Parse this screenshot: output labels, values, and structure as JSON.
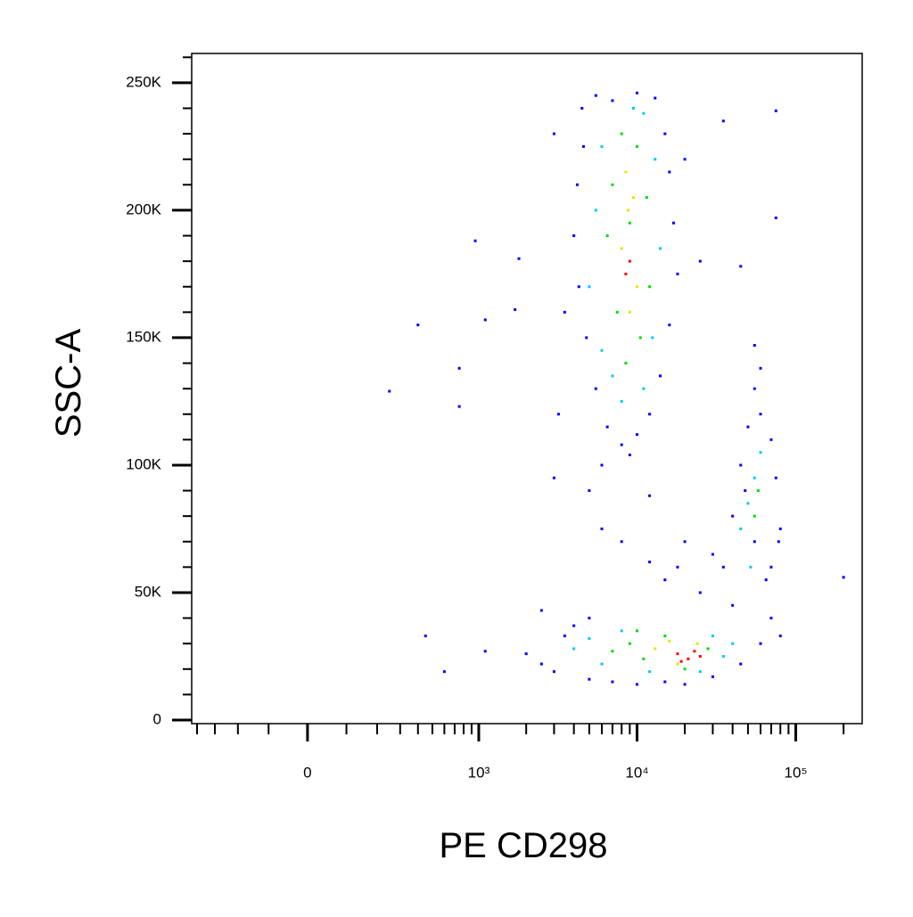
{
  "chart_data": {
    "type": "scatter",
    "xlabel": "PE CD298",
    "ylabel": "SSC-A",
    "xscale": "biexponential",
    "xlim": [
      -435,
      262000
    ],
    "ylim": [
      -1400,
      261500
    ],
    "xticks": [
      0,
      {
        "value": 1000,
        "label": "10³"
      },
      {
        "value": 10000,
        "label": "10⁴"
      },
      {
        "value": 100000,
        "label": "10⁵"
      }
    ],
    "xminorticks": [
      -400,
      -300,
      -200,
      -100,
      100,
      200,
      300,
      400,
      500,
      600,
      700,
      800,
      900,
      2000,
      3000,
      4000,
      5000,
      6000,
      7000,
      8000,
      9000,
      20000,
      30000,
      40000,
      50000,
      60000,
      70000,
      80000,
      90000,
      200000
    ],
    "yticks": [
      {
        "value": 0,
        "label": "0"
      },
      {
        "value": 50000,
        "label": "50K"
      },
      {
        "value": 100000,
        "label": "100K"
      },
      {
        "value": 150000,
        "label": "150K"
      },
      {
        "value": 200000,
        "label": "200K"
      },
      {
        "value": 250000,
        "label": "250K"
      }
    ],
    "yminorticks": [
      10000,
      20000,
      30000,
      40000,
      60000,
      70000,
      80000,
      90000,
      110000,
      120000,
      130000,
      140000,
      160000,
      170000,
      180000,
      190000,
      210000,
      220000,
      230000,
      240000,
      260000
    ],
    "series": [
      {
        "color": "#0000ff",
        "x": [
          4500,
          5500,
          7000,
          10000,
          13000,
          15000,
          16000,
          17000,
          18000,
          16000,
          14000,
          12000,
          10000,
          8000,
          6500,
          5500,
          4800,
          4300,
          4000,
          4200,
          4600,
          3500,
          3000,
          20000,
          25000,
          3200,
          9000,
          6000,
          250,
          400,
          750,
          750,
          950,
          1100,
          1800,
          1700,
          35000,
          75000,
          75000,
          45000,
          55000,
          450,
          600,
          1100,
          2500,
          200000,
          2000,
          2500,
          3000,
          3500,
          4000,
          5000,
          5000,
          7000,
          10000,
          15000,
          20000,
          30000,
          45000,
          60000,
          80000,
          70000,
          40000,
          25000,
          15000,
          12000,
          8000,
          6000,
          20000,
          30000,
          5000,
          3000,
          12000,
          18000,
          35000,
          40000,
          45000,
          50000,
          60000,
          70000,
          75000,
          80000,
          65000,
          55000,
          48000,
          70000,
          60000,
          55000,
          78000
        ],
        "y": [
          240000,
          245000,
          243000,
          246000,
          244000,
          230000,
          215000,
          195000,
          175000,
          155000,
          135000,
          120000,
          112000,
          108000,
          115000,
          130000,
          150000,
          170000,
          190000,
          210000,
          225000,
          160000,
          230000,
          220000,
          180000,
          120000,
          104000,
          100000,
          129000,
          155000,
          138000,
          123000,
          188000,
          157000,
          181000,
          161000,
          235000,
          239000,
          197000,
          178000,
          147000,
          33000,
          19000,
          27000,
          43000,
          56000,
          26000,
          22000,
          19000,
          33000,
          37000,
          40000,
          16000,
          15000,
          14000,
          15000,
          14000,
          17000,
          22000,
          30000,
          33000,
          40000,
          45000,
          50000,
          55000,
          62000,
          70000,
          75000,
          70000,
          65000,
          90000,
          95000,
          88000,
          60000,
          60000,
          80000,
          100000,
          115000,
          120000,
          110000,
          95000,
          75000,
          55000,
          70000,
          90000,
          60000,
          138000,
          130000,
          70000
        ]
      },
      {
        "color": "#00c8ff",
        "x": [
          6000,
          11000,
          13000,
          5500,
          14000,
          5000,
          12500,
          6000,
          11000,
          8000,
          7000,
          9500,
          4000,
          5000,
          6000,
          8000,
          30000,
          35000,
          40000,
          12000,
          25000,
          50000,
          55000,
          60000,
          45000,
          52000
        ],
        "y": [
          225000,
          238000,
          220000,
          200000,
          185000,
          170000,
          150000,
          145000,
          130000,
          125000,
          135000,
          240000,
          28000,
          32000,
          22000,
          35000,
          33000,
          25000,
          30000,
          19000,
          19000,
          85000,
          95000,
          105000,
          75000,
          60000
        ]
      },
      {
        "color": "#00dd00",
        "x": [
          8000,
          10000,
          7000,
          11500,
          6500,
          12000,
          7500,
          10500,
          8500,
          9000,
          7000,
          9000,
          11000,
          15000,
          28000,
          20000,
          10000,
          55000,
          58000
        ],
        "y": [
          230000,
          225000,
          210000,
          205000,
          190000,
          170000,
          160000,
          150000,
          140000,
          195000,
          27000,
          30000,
          24000,
          33000,
          28000,
          20000,
          35000,
          80000,
          90000
        ]
      },
      {
        "color": "#e6e600",
        "x": [
          8500,
          9500,
          8000,
          10000,
          9000,
          8800,
          13000,
          16000,
          24000,
          18000
        ],
        "y": [
          215000,
          205000,
          185000,
          170000,
          160000,
          200000,
          28000,
          31000,
          30000,
          22000
        ]
      },
      {
        "color": "#ff0000",
        "x": [
          9000,
          8500,
          18000,
          21000,
          23000,
          19000,
          25000
        ],
        "y": [
          180000,
          175000,
          26000,
          24000,
          27000,
          23000,
          25000
        ]
      }
    ]
  }
}
